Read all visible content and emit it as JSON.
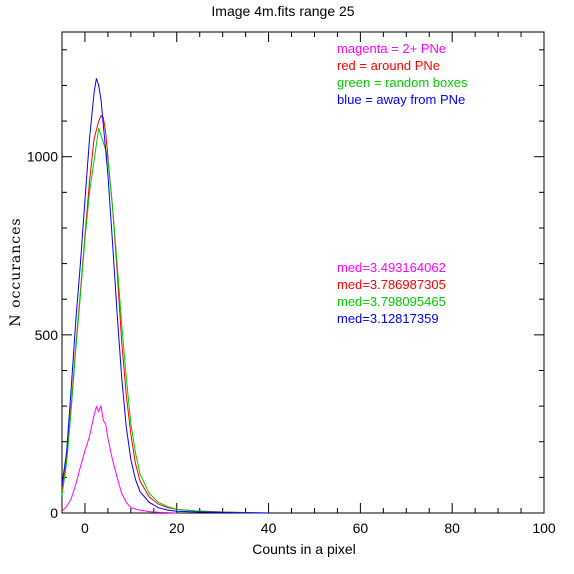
{
  "chart_data": {
    "type": "line",
    "title": "Image 4m.fits    range 25",
    "xlabel": "Counts in a pixel",
    "ylabel": "N  occurances",
    "xlim": [
      -5,
      100
    ],
    "ylim": [
      0,
      1350
    ],
    "xticks": [
      0,
      20,
      40,
      60,
      80,
      100
    ],
    "yticks": [
      0,
      500,
      1000
    ],
    "xticks_minor_step": 5,
    "yticks_minor_step": 100,
    "grid": false,
    "legend_position": "top-right",
    "legend": [
      {
        "text": "magenta = 2+ PNe",
        "color": "#ff00ff"
      },
      {
        "text": "red = around PNe",
        "color": "#ff0000"
      },
      {
        "text": "green = random boxes",
        "color": "#00cc00"
      },
      {
        "text": "blue = away from PNe",
        "color": "#0000ff"
      }
    ],
    "annotations": [
      {
        "text": "med=3.493164062",
        "color": "#ff00ff"
      },
      {
        "text": "med=3.786987305",
        "color": "#ff0000"
      },
      {
        "text": "med=3.798095465",
        "color": "#00cc00"
      },
      {
        "text": "med=3.12817359",
        "color": "#0000ff"
      }
    ],
    "series": [
      {
        "color": "#ff00ff",
        "x": [
          -5,
          -4,
          -3,
          -2,
          -1,
          0,
          1,
          2,
          2.5,
          3,
          3.5,
          4,
          4.5,
          5,
          6,
          7,
          8,
          9,
          10,
          12,
          14,
          16,
          18,
          20
        ],
        "y": [
          5,
          18,
          40,
          80,
          130,
          175,
          215,
          275,
          298,
          285,
          300,
          260,
          250,
          210,
          150,
          100,
          55,
          30,
          15,
          8,
          4,
          2,
          1,
          0
        ]
      },
      {
        "color": "#ff0000",
        "x": [
          -5,
          -4,
          -3,
          -2,
          -1,
          0,
          1,
          2,
          3,
          3.5,
          4,
          4.5,
          5,
          6,
          7,
          8,
          9,
          10,
          11,
          12,
          14,
          16,
          18,
          20,
          24,
          28,
          32,
          40
        ],
        "y": [
          60,
          150,
          300,
          470,
          620,
          780,
          930,
          1050,
          1100,
          1115,
          1110,
          1070,
          1000,
          860,
          680,
          480,
          330,
          220,
          140,
          90,
          45,
          25,
          15,
          10,
          6,
          4,
          2,
          0
        ]
      },
      {
        "color": "#00cc00",
        "x": [
          -5,
          -4,
          -3,
          -2,
          -1,
          0,
          1,
          2,
          3,
          3.5,
          4,
          4.5,
          5,
          6,
          7,
          8,
          9,
          10,
          11,
          12,
          14,
          16,
          18,
          20,
          24,
          28,
          32,
          40
        ],
        "y": [
          50,
          140,
          290,
          460,
          610,
          770,
          900,
          990,
          1080,
          1060,
          1040,
          1020,
          990,
          860,
          700,
          530,
          380,
          250,
          170,
          110,
          55,
          30,
          18,
          10,
          6,
          3,
          2,
          0
        ]
      },
      {
        "color": "#0000ff",
        "x": [
          -5,
          -4,
          -3,
          -2,
          -1,
          0,
          1,
          2,
          2.5,
          3,
          3.5,
          4,
          5,
          6,
          7,
          8,
          9,
          10,
          11,
          12,
          14,
          16,
          18,
          20,
          24,
          28,
          32,
          40
        ],
        "y": [
          80,
          170,
          350,
          540,
          700,
          880,
          1050,
          1180,
          1220,
          1200,
          1160,
          1090,
          950,
          760,
          560,
          380,
          240,
          150,
          95,
          60,
          30,
          15,
          8,
          5,
          3,
          2,
          1,
          0
        ]
      }
    ]
  }
}
